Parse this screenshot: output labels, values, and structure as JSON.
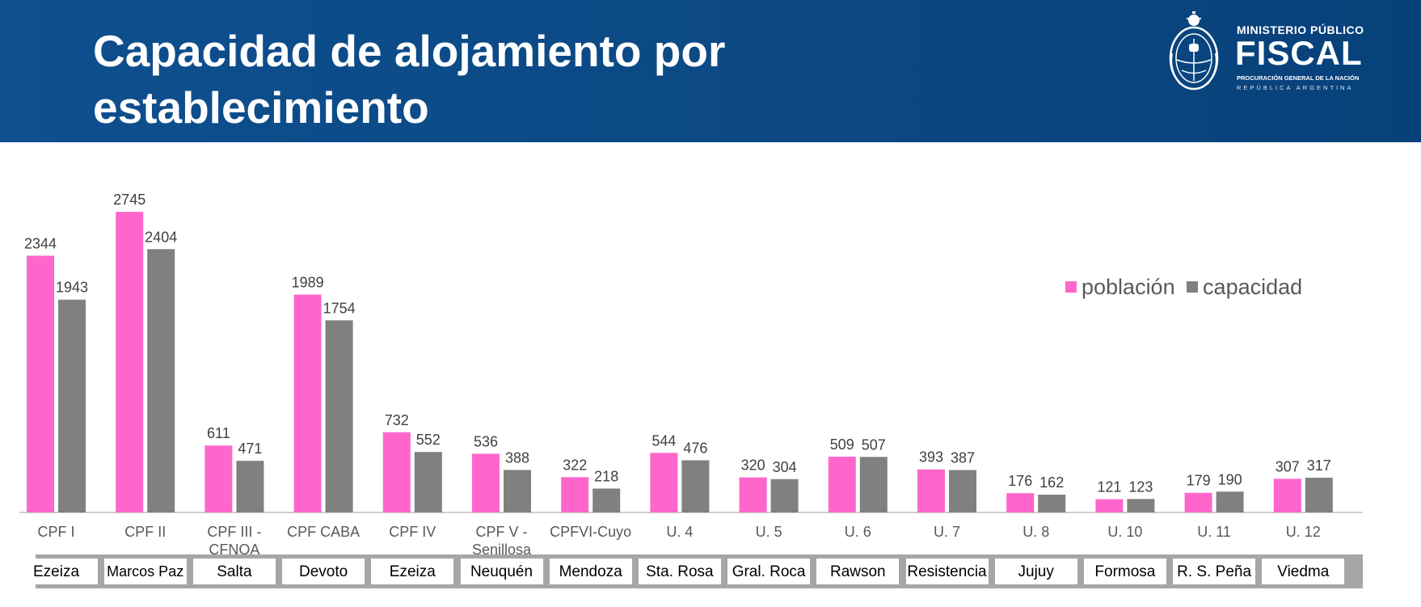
{
  "header": {
    "title": "Capacidad de alojamiento por establecimiento",
    "logo": {
      "line1": "MINISTERIO PÚBLICO",
      "line2": "FISCAL",
      "line3": "PROCURACIÓN GENERAL DE LA NACIÓN",
      "line4": "REPÚBLICA ARGENTINA",
      "seal_icon": "national-seal-icon"
    }
  },
  "colors": {
    "header_bg": "#0c4a86",
    "poblacion": "#ff66cc",
    "capacidad": "#808080",
    "axis": "#bfbfbf",
    "label_text": "#404040",
    "category_text": "#595959"
  },
  "chart_data": {
    "type": "bar",
    "title": "Capacidad de alojamiento por establecimiento",
    "xlabel": "",
    "ylabel": "",
    "ylim": [
      0,
      3000
    ],
    "grid": false,
    "legend_position": "top-right",
    "categories": [
      "CPF I",
      "CPF II",
      "CPF III - CFNOA",
      "CPF CABA",
      "CPF IV",
      "CPF V - Senillosa",
      "CPFVI-Cuyo",
      "U. 4",
      "U. 5",
      "U. 6",
      "U. 7",
      "U. 8",
      "U. 10",
      "U. 11",
      "U. 12"
    ],
    "sublabels": [
      "Ezeiza",
      "Marcos Paz",
      "Salta",
      "Devoto",
      "Ezeiza",
      "Neuquén",
      "Mendoza",
      "Sta. Rosa",
      "Gral. Roca",
      "Rawson",
      "Resistencia",
      "Jujuy",
      "Formosa",
      "R. S. Peña",
      "Viedma"
    ],
    "series": [
      {
        "name": "población",
        "values": [
          2344,
          2745,
          611,
          1989,
          732,
          536,
          322,
          544,
          320,
          509,
          393,
          176,
          121,
          179,
          307
        ]
      },
      {
        "name": "capacidad",
        "values": [
          1943,
          2404,
          471,
          1754,
          552,
          388,
          218,
          476,
          304,
          507,
          387,
          162,
          123,
          190,
          317
        ]
      }
    ]
  }
}
